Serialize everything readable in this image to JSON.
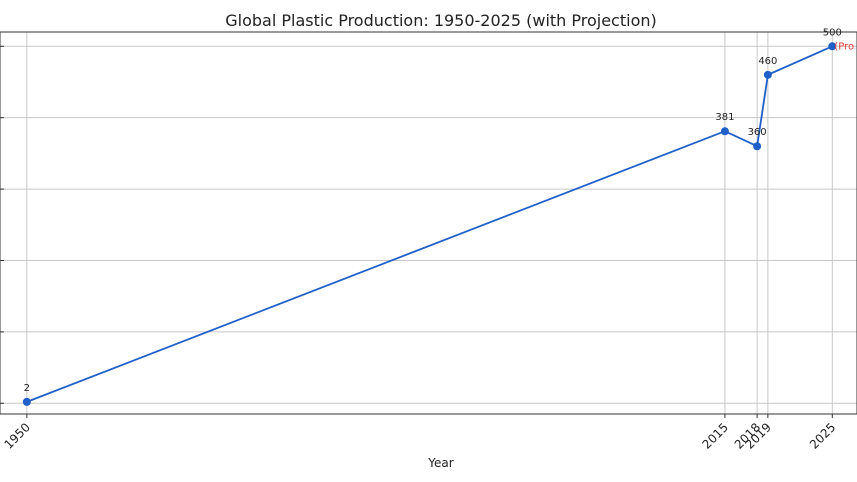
{
  "chart_data": {
    "type": "line",
    "title": "Global Plastic Production: 1950-2025 (with Projection)",
    "xlabel": "Year",
    "ylabel": "",
    "x": [
      1950,
      2015,
      2018,
      2019,
      2025
    ],
    "xticks": [
      "1950",
      "2015",
      "2018",
      "2019",
      "2025"
    ],
    "series": [
      {
        "values": [
          2,
          381,
          360,
          460,
          500
        ],
        "color": "#1f5fc8"
      }
    ],
    "data_labels": [
      "2",
      "381",
      "360",
      "460",
      "500"
    ],
    "annotation": {
      "x": 2025,
      "text": "(Pro",
      "color": "#e53935"
    },
    "xlim": [
      1947.5,
      2027.3
    ],
    "ylim": [
      -15,
      520
    ],
    "yticks": [
      0,
      100,
      200,
      300,
      400,
      500
    ],
    "grid": true,
    "line_color": "#1f5fc8"
  }
}
